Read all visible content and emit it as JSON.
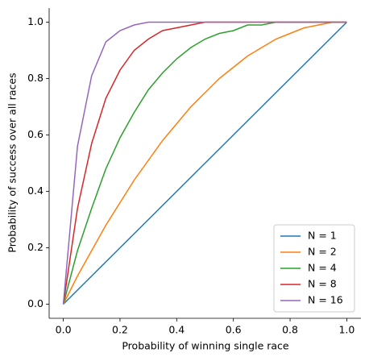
{
  "chart_data": {
    "type": "line",
    "x_label": "Probability of winning single race",
    "y_label": "Probability of success over all races",
    "x": [
      0,
      0.05,
      0.1,
      0.15,
      0.2,
      0.25,
      0.3,
      0.35,
      0.4,
      0.45,
      0.5,
      0.55,
      0.6,
      0.65,
      0.7,
      0.75,
      0.8,
      0.85,
      0.9,
      0.95,
      1
    ],
    "series": [
      {
        "name": "N = 1",
        "color": "#1f77b4",
        "values": [
          0,
          0.05,
          0.1,
          0.15,
          0.2,
          0.25,
          0.3,
          0.35,
          0.4,
          0.45,
          0.5,
          0.55,
          0.6,
          0.65,
          0.7,
          0.75,
          0.8,
          0.85,
          0.9,
          0.95,
          1
        ]
      },
      {
        "name": "N = 2",
        "color": "#ff7f0e",
        "values": [
          0,
          0.1,
          0.19,
          0.28,
          0.36,
          0.44,
          0.51,
          0.58,
          0.64,
          0.7,
          0.75,
          0.8,
          0.84,
          0.88,
          0.91,
          0.94,
          0.96,
          0.98,
          0.99,
          1,
          1
        ]
      },
      {
        "name": "N = 4",
        "color": "#2ca02c",
        "values": [
          0,
          0.19,
          0.34,
          0.48,
          0.59,
          0.68,
          0.76,
          0.82,
          0.87,
          0.91,
          0.94,
          0.96,
          0.97,
          0.99,
          0.99,
          1,
          1,
          1,
          1,
          1,
          1
        ]
      },
      {
        "name": "N = 8",
        "color": "#d62728",
        "values": [
          0,
          0.34,
          0.57,
          0.73,
          0.83,
          0.9,
          0.94,
          0.97,
          0.98,
          0.99,
          1,
          1,
          1,
          1,
          1,
          1,
          1,
          1,
          1,
          1,
          1
        ]
      },
      {
        "name": "N = 16",
        "color": "#9467bd",
        "values": [
          0,
          0.56,
          0.81,
          0.93,
          0.97,
          0.99,
          1,
          1,
          1,
          1,
          1,
          1,
          1,
          1,
          1,
          1,
          1,
          1,
          1,
          1,
          1
        ]
      }
    ],
    "xlim": [
      -0.05,
      1.05
    ],
    "ylim": [
      -0.05,
      1.05
    ],
    "xticks": [
      {
        "value": 0,
        "label": "0.0"
      },
      0.2,
      0.4,
      0.6,
      0.8,
      {
        "value": 1,
        "label": "1.0"
      }
    ],
    "yticks": [
      {
        "value": 0,
        "label": "0.0"
      },
      0.2,
      0.4,
      0.6,
      0.8,
      {
        "value": 1,
        "label": "1.0"
      }
    ],
    "legend": "lower right"
  }
}
